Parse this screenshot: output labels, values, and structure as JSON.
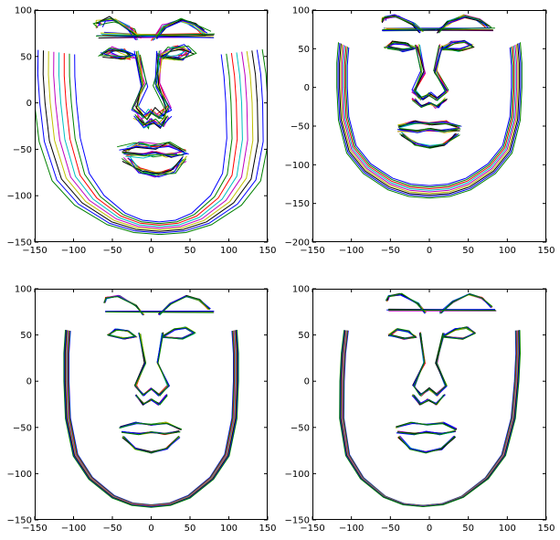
{
  "figure": {
    "background": "#ffffff",
    "panel_count": 4
  },
  "chart_data": [
    {
      "type": "line",
      "title": "",
      "xlabel": "",
      "ylabel": "",
      "xlim": [
        -150,
        150
      ],
      "ylim": [
        -150,
        100
      ],
      "xticks": [
        "−150",
        "−100",
        "−50",
        "0",
        "50",
        "100",
        "150"
      ],
      "yticks": [
        "100",
        "50",
        "0",
        "−50",
        "−100",
        "−150"
      ],
      "grid": false,
      "legend": "none",
      "series_colors": [
        "#0000ff",
        "#008000",
        "#ff0000",
        "#00bfbf",
        "#bf00bf",
        "#bfbf00",
        "#000000",
        "#0000ff",
        "#008000"
      ],
      "face_shape": {
        "jaw_width": 0.88,
        "jaw_top": 50,
        "chin_y": -135,
        "brow_y": 78,
        "eye_y": 52,
        "mouth_y": -55
      },
      "variation": {
        "spread_x": 0.22,
        "spread_y": 0.1,
        "feature_jitter": 0.45,
        "tilt": -0.08
      }
    },
    {
      "type": "line",
      "title": "",
      "xlabel": "",
      "ylabel": "",
      "xlim": [
        -150,
        150
      ],
      "ylim": [
        -200,
        100
      ],
      "xticks": [
        "−150",
        "−100",
        "−50",
        "0",
        "50",
        "100",
        "150"
      ],
      "yticks": [
        "100",
        "50",
        "0",
        "−50",
        "−100",
        "−150",
        "−200"
      ],
      "grid": false,
      "legend": "none",
      "series_colors": [
        "#0000ff",
        "#008000",
        "#ff0000",
        "#00bfbf",
        "#bf00bf",
        "#bfbf00",
        "#000000",
        "#0000ff",
        "#008000"
      ],
      "face_shape": {
        "jaw_width": 0.8,
        "jaw_top": 50,
        "chin_y": -135,
        "brow_y": 80,
        "eye_y": 52,
        "mouth_y": -55
      },
      "variation": {
        "spread_x": 0.06,
        "spread_y": 0.12,
        "feature_jitter": 0.3,
        "tilt": 0.0
      }
    },
    {
      "type": "line",
      "title": "",
      "xlabel": "",
      "ylabel": "",
      "xlim": [
        -150,
        150
      ],
      "ylim": [
        -150,
        100
      ],
      "xticks": [
        "−150",
        "−100",
        "−50",
        "0",
        "50",
        "100",
        "150"
      ],
      "yticks": [
        "100",
        "50",
        "0",
        "−50",
        "−100",
        "−150"
      ],
      "grid": false,
      "legend": "none",
      "series_colors": [
        "#0000ff",
        "#008000",
        "#ff0000",
        "#00bfbf",
        "#bf00bf",
        "#bfbf00",
        "#000000",
        "#0000ff",
        "#008000"
      ],
      "face_shape": {
        "jaw_width": 0.78,
        "jaw_top": 50,
        "chin_y": -135,
        "brow_y": 80,
        "eye_y": 50,
        "mouth_y": -55
      },
      "variation": {
        "spread_x": 0.03,
        "spread_y": 0.02,
        "feature_jitter": 0.12,
        "tilt": 0.0
      }
    },
    {
      "type": "line",
      "title": "",
      "xlabel": "",
      "ylabel": "",
      "xlim": [
        -150,
        150
      ],
      "ylim": [
        -150,
        100
      ],
      "xticks": [
        "−150",
        "−100",
        "−50",
        "0",
        "50",
        "100",
        "150"
      ],
      "yticks": [
        "100",
        "50",
        "0",
        "−50",
        "−100",
        "−150"
      ],
      "grid": false,
      "legend": "none",
      "series_colors": [
        "#0000ff",
        "#008000",
        "#ff0000",
        "#00bfbf",
        "#bf00bf",
        "#bfbf00",
        "#000000",
        "#0000ff",
        "#008000"
      ],
      "face_shape": {
        "jaw_width": 0.8,
        "jaw_top": 50,
        "chin_y": -135,
        "brow_y": 82,
        "eye_y": 50,
        "mouth_y": -55
      },
      "variation": {
        "spread_x": 0.025,
        "spread_y": 0.01,
        "feature_jitter": 0.14,
        "tilt": 0.06
      }
    }
  ]
}
